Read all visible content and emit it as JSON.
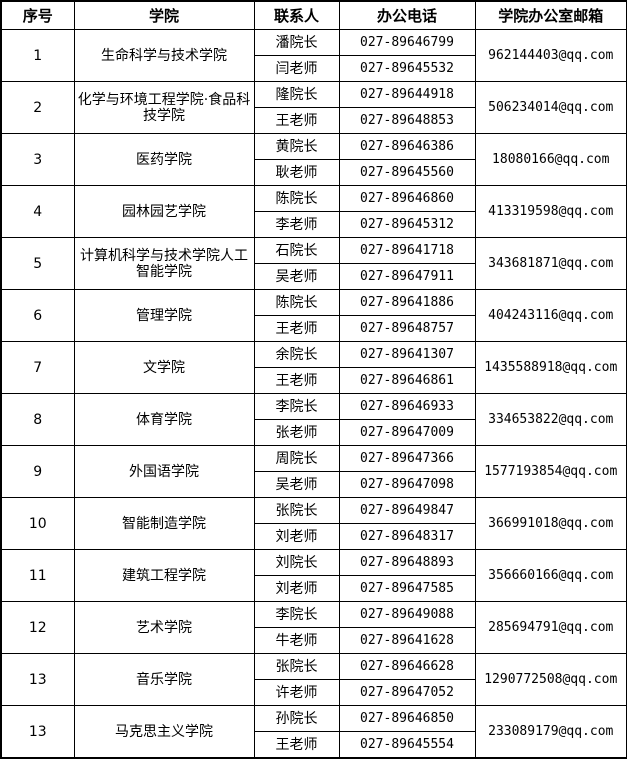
{
  "headers": [
    "序号",
    "学院",
    "联系人",
    "办公电话",
    "学院办公室邮箱"
  ],
  "rows": [
    {
      "no": "1",
      "college": "生命科学与技术学院",
      "contacts": [
        {
          "name": "潘院长",
          "phone": "027-89646799"
        },
        {
          "name": "闫老师",
          "phone": "027-89645532"
        }
      ],
      "email": "962144403@qq.com"
    },
    {
      "no": "2",
      "college": "化学与环境工程学院·食品科技学院",
      "contacts": [
        {
          "name": "隆院长",
          "phone": "027-89644918"
        },
        {
          "name": "王老师",
          "phone": "027-89648853"
        }
      ],
      "email": "506234014@qq.com"
    },
    {
      "no": "3",
      "college": "医药学院",
      "contacts": [
        {
          "name": "黄院长",
          "phone": "027-89646386"
        },
        {
          "name": "耿老师",
          "phone": "027-89645560"
        }
      ],
      "email": "18080166@qq.com"
    },
    {
      "no": "4",
      "college": "园林园艺学院",
      "contacts": [
        {
          "name": "陈院长",
          "phone": "027-89646860"
        },
        {
          "name": "李老师",
          "phone": "027-89645312"
        }
      ],
      "email": "413319598@qq.com"
    },
    {
      "no": "5",
      "college": "计算机科学与技术学院人工智能学院",
      "contacts": [
        {
          "name": "石院长",
          "phone": "027-89641718"
        },
        {
          "name": "吴老师",
          "phone": "027-89647911"
        }
      ],
      "email": "343681871@qq.com"
    },
    {
      "no": "6",
      "college": "管理学院",
      "contacts": [
        {
          "name": "陈院长",
          "phone": "027-89641886"
        },
        {
          "name": "王老师",
          "phone": "027-89648757"
        }
      ],
      "email": "404243116@qq.com"
    },
    {
      "no": "7",
      "college": "文学院",
      "contacts": [
        {
          "name": "余院长",
          "phone": "027-89641307"
        },
        {
          "name": "王老师",
          "phone": "027-89646861"
        }
      ],
      "email": "1435588918@qq.com"
    },
    {
      "no": "8",
      "college": "体育学院",
      "contacts": [
        {
          "name": "李院长",
          "phone": "027-89646933"
        },
        {
          "name": "张老师",
          "phone": "027-89647009"
        }
      ],
      "email": "334653822@qq.com"
    },
    {
      "no": "9",
      "college": "外国语学院",
      "contacts": [
        {
          "name": "周院长",
          "phone": "027-89647366"
        },
        {
          "name": "吴老师",
          "phone": "027-89647098"
        }
      ],
      "email": "1577193854@qq.com"
    },
    {
      "no": "10",
      "college": "智能制造学院",
      "contacts": [
        {
          "name": "张院长",
          "phone": "027-89649847"
        },
        {
          "name": "刘老师",
          "phone": "027-89648317"
        }
      ],
      "email": "366991018@qq.com"
    },
    {
      "no": "11",
      "college": "建筑工程学院",
      "contacts": [
        {
          "name": "刘院长",
          "phone": "027-89648893"
        },
        {
          "name": "刘老师",
          "phone": "027-89647585"
        }
      ],
      "email": "356660166@qq.com"
    },
    {
      "no": "12",
      "college": "艺术学院",
      "contacts": [
        {
          "name": "李院长",
          "phone": "027-89649088"
        },
        {
          "name": "牛老师",
          "phone": "027-89641628"
        }
      ],
      "email": "285694791@qq.com"
    },
    {
      "no": "13",
      "college": "音乐学院",
      "contacts": [
        {
          "name": "张院长",
          "phone": "027-89646628"
        },
        {
          "name": "许老师",
          "phone": "027-89647052"
        }
      ],
      "email": "1290772508@qq.com"
    },
    {
      "no": "13",
      "college": "马克思主义学院",
      "contacts": [
        {
          "name": "孙院长",
          "phone": "027-89646850"
        },
        {
          "name": "王老师",
          "phone": "027-89645554"
        }
      ],
      "email": "233089179@qq.com"
    }
  ]
}
